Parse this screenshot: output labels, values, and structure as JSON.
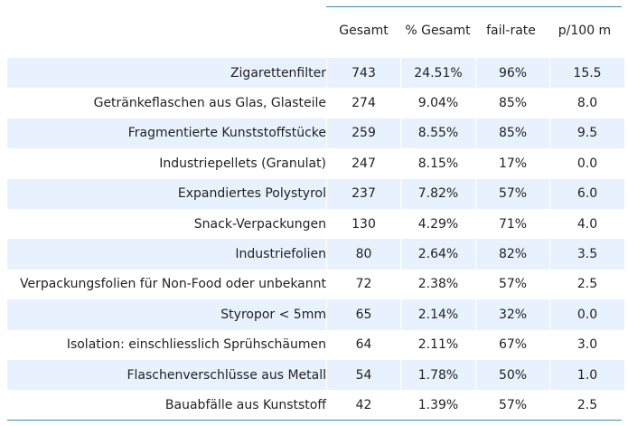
{
  "columns": [
    "Gesamt",
    "% Gesamt",
    "fail-rate",
    "p/100 m"
  ],
  "rows": [
    {
      "name": "Zigarettenfilter",
      "gesamt": "743",
      "pct": "24.51%",
      "fail": "96%",
      "p100": "15.5"
    },
    {
      "name": "Getränkeflaschen aus Glas, Glasteile",
      "gesamt": "274",
      "pct": "9.04%",
      "fail": "85%",
      "p100": "8.0"
    },
    {
      "name": "Fragmentierte Kunststoffstücke",
      "gesamt": "259",
      "pct": "8.55%",
      "fail": "85%",
      "p100": "9.5"
    },
    {
      "name": "Industriepellets (Granulat)",
      "gesamt": "247",
      "pct": "8.15%",
      "fail": "17%",
      "p100": "0.0"
    },
    {
      "name": "Expandiertes Polystyrol",
      "gesamt": "237",
      "pct": "7.82%",
      "fail": "57%",
      "p100": "6.0"
    },
    {
      "name": "Snack-Verpackungen",
      "gesamt": "130",
      "pct": "4.29%",
      "fail": "71%",
      "p100": "4.0"
    },
    {
      "name": "Industriefolien",
      "gesamt": "80",
      "pct": "2.64%",
      "fail": "82%",
      "p100": "3.5"
    },
    {
      "name": "Verpackungsfolien für Non-Food oder unbekannt",
      "gesamt": "72",
      "pct": "2.38%",
      "fail": "57%",
      "p100": "2.5"
    },
    {
      "name": "Styropor < 5mm",
      "gesamt": "65",
      "pct": "2.14%",
      "fail": "32%",
      "p100": "0.0"
    },
    {
      "name": "Isolation: einschliesslich Sprühschäumen",
      "gesamt": "64",
      "pct": "2.11%",
      "fail": "67%",
      "p100": "3.0"
    },
    {
      "name": "Flaschenverschlüsse aus Metall",
      "gesamt": "54",
      "pct": "1.78%",
      "fail": "50%",
      "p100": "1.0"
    },
    {
      "name": "Bauabfälle aus Kunststoff",
      "gesamt": "42",
      "pct": "1.39%",
      "fail": "57%",
      "p100": "2.5"
    }
  ],
  "colors": {
    "stripe": "#e8f2fe",
    "rule": "#3a8fb0"
  }
}
